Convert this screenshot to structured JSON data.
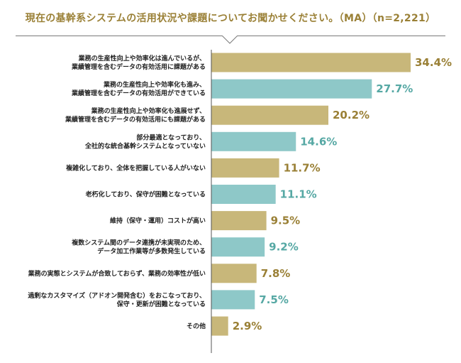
{
  "header": {
    "title": "現在の基幹系システムの活用状況や課題についてお聞かせください。（MA）（n=2,221）"
  },
  "colors": {
    "gold": "#c8b77a",
    "teal": "#8ec8c8",
    "gold_text": "#9a8036",
    "teal_text": "#56a8a4"
  },
  "chart_data": {
    "type": "bar",
    "orientation": "horizontal",
    "title": "現在の基幹系システムの活用状況や課題についてお聞かせください。（MA）（n=2,221）",
    "categories": [
      [
        "業務の生産性向上や効率化は進んでいるが、",
        "業績管理を含むデータの有効活用に課題がある"
      ],
      [
        "業務の生産性向上や効率化も進み、",
        "業績管理を含むデータの有効活用ができている"
      ],
      [
        "業務の生産性向上や効率化も進展せず、",
        "業績管理を含むデータの有効活用にも課題がある"
      ],
      [
        "部分最適となっており、",
        "全社的な統合基幹システムとなっていない"
      ],
      [
        "複雑化しており、全体を把握している人がいない"
      ],
      [
        "老朽化しており、保守が困難となっている"
      ],
      [
        "維持（保守・運用）コストが高い"
      ],
      [
        "複数システム間のデータ連携が未実現のため、",
        "データ加工作業等が多数発生している"
      ],
      [
        "業務の実態とシステムが合致しておらず、業務の効率性が低い"
      ],
      [
        "過剰なカスタマイズ（アドオン開発含む）をおこなっており、",
        "保守・更新が困難となっている"
      ],
      [
        "その他"
      ]
    ],
    "values": [
      34.4,
      27.7,
      20.2,
      14.6,
      11.7,
      11.1,
      9.5,
      9.2,
      7.8,
      7.5,
      2.9
    ],
    "value_labels": [
      "34.4%",
      "27.7%",
      "20.2%",
      "14.6%",
      "11.7%",
      "11.1%",
      "9.5%",
      "9.2%",
      "7.8%",
      "7.5%",
      "2.9%"
    ],
    "bar_colors": [
      "gold",
      "teal",
      "gold",
      "teal",
      "gold",
      "teal",
      "gold",
      "teal",
      "gold",
      "teal",
      "gold"
    ],
    "unit": "%",
    "xlim": [
      0,
      40
    ],
    "grid": false,
    "legend": "none"
  }
}
